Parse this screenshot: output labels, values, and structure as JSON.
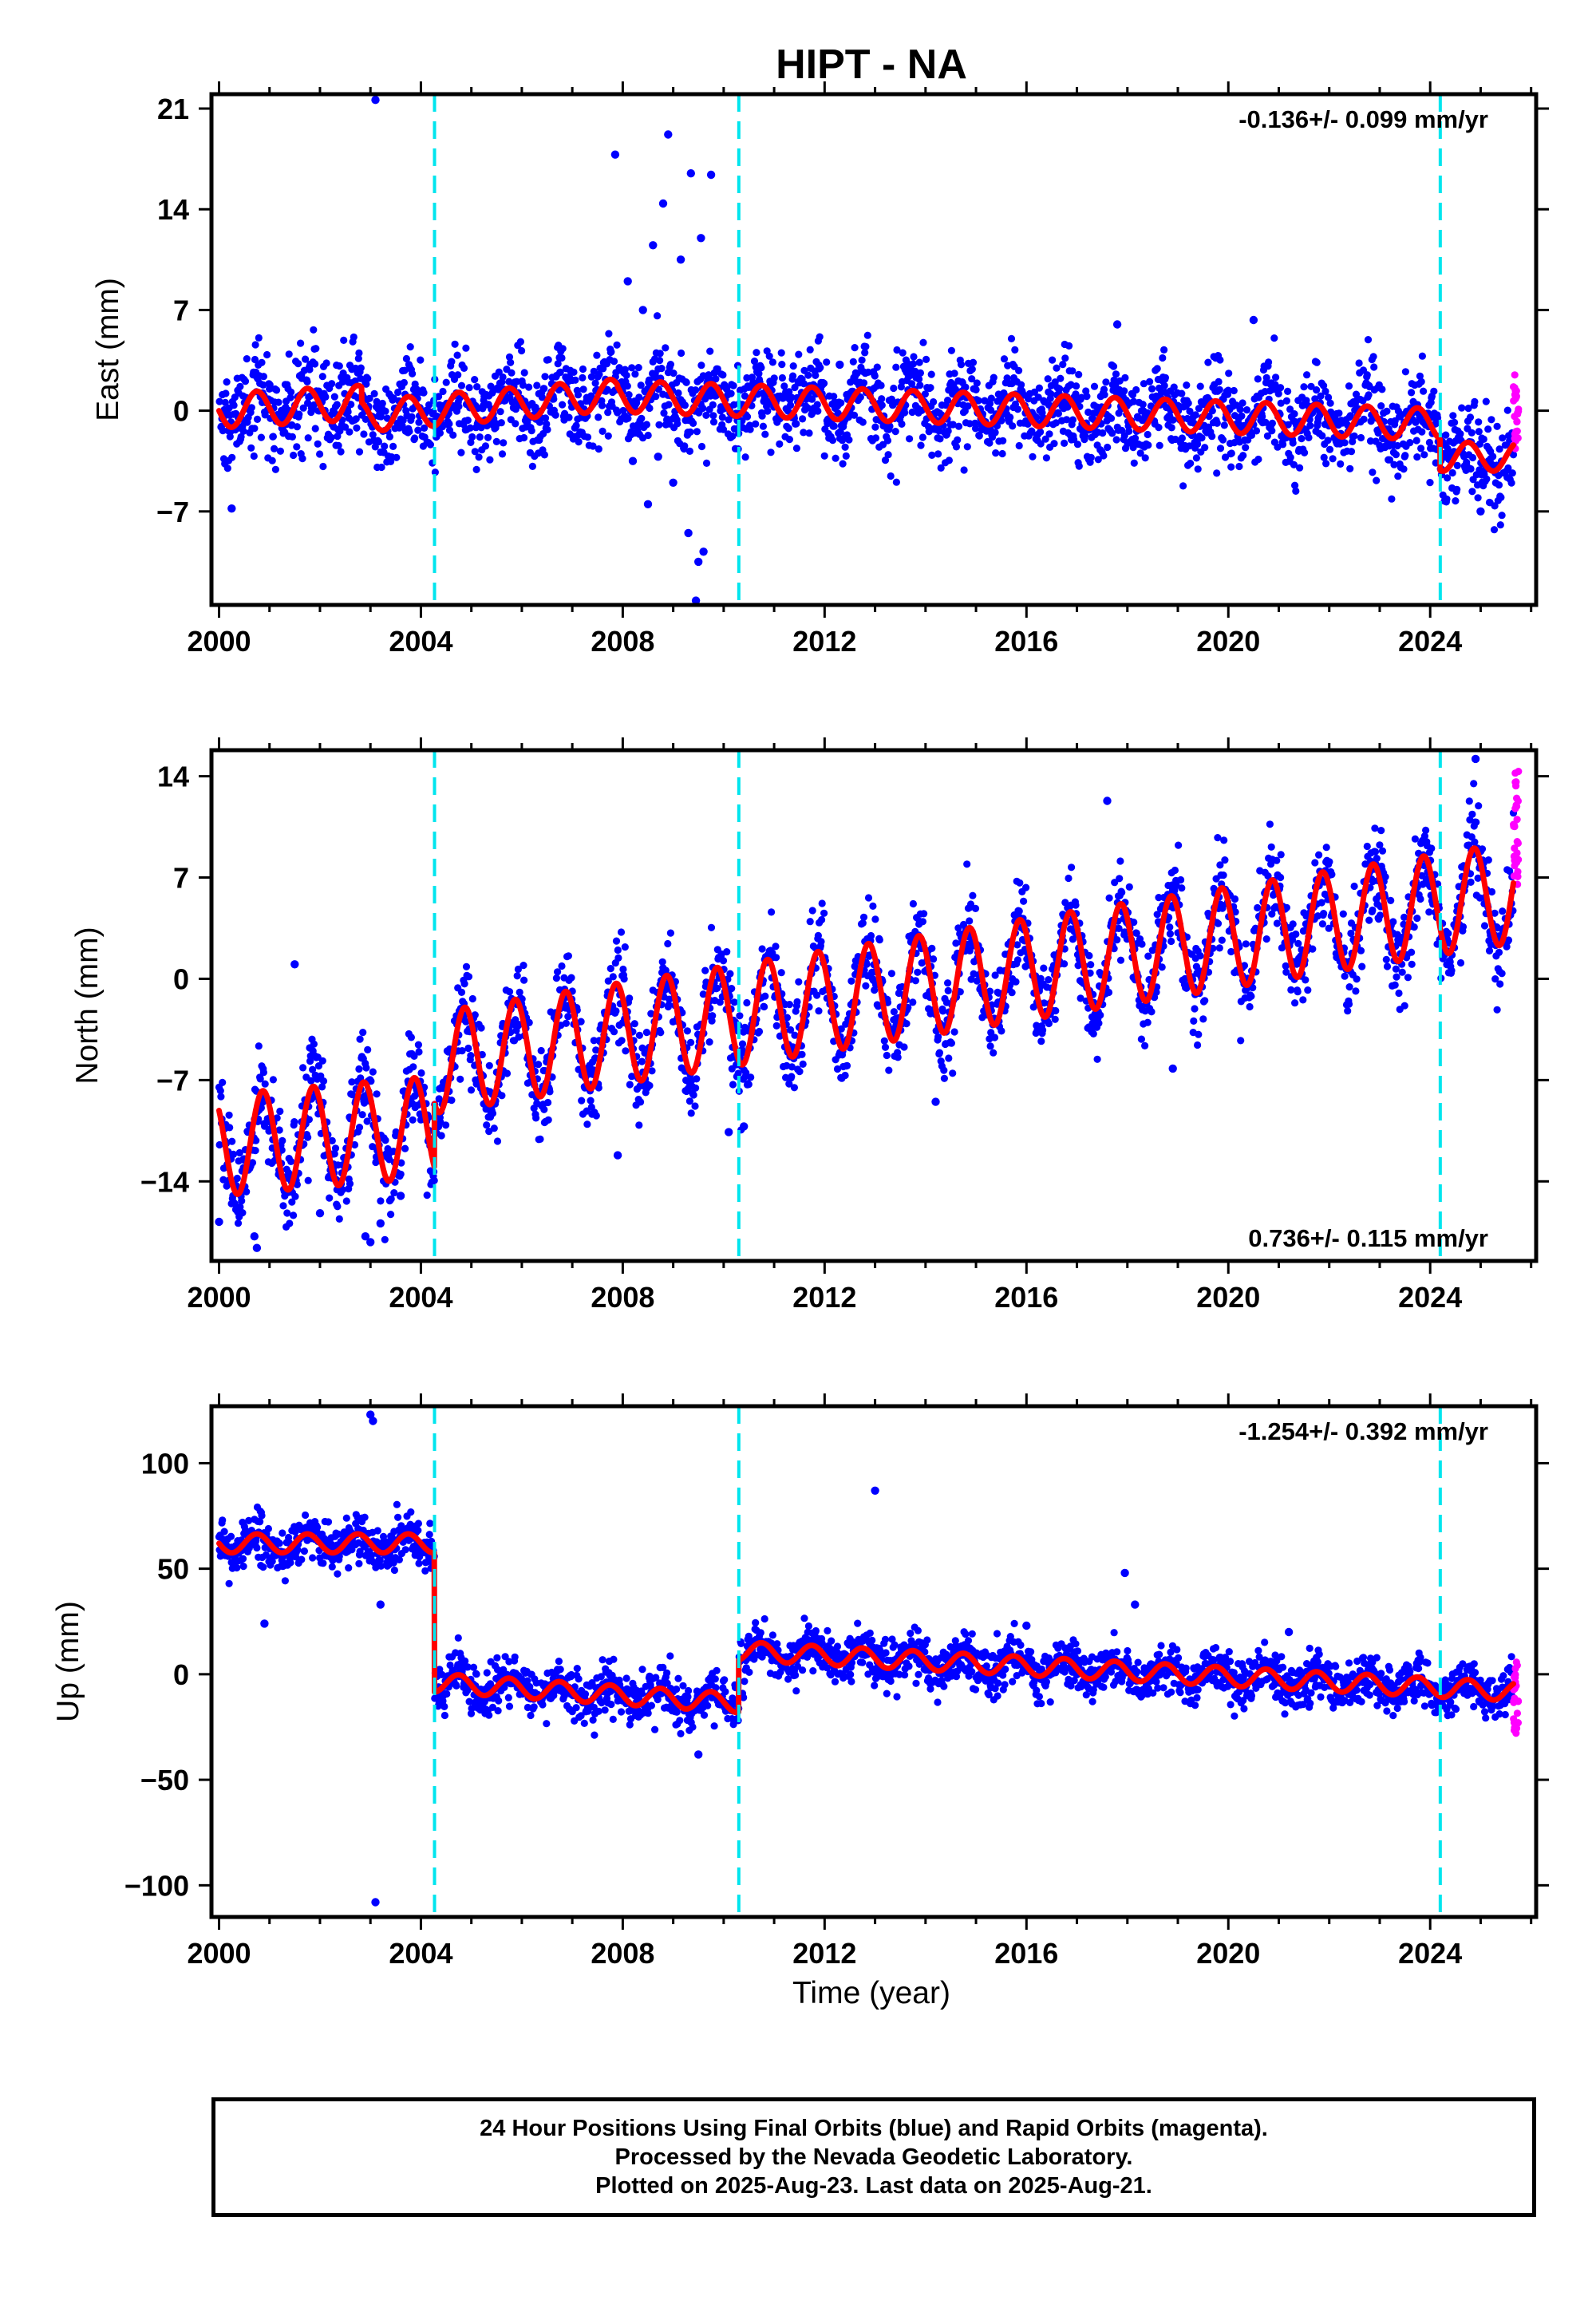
{
  "figure": {
    "title": "HIPT - NA",
    "xlabel": "Time (year)",
    "colors": {
      "final_orbits": "#0000ff",
      "rapid_orbits": "#ff00ff",
      "model": "#ff0000",
      "events": "#00e5ee",
      "frame": "#000000"
    },
    "footer": [
      "24 Hour Positions Using Final Orbits (blue) and Rapid Orbits (magenta).",
      "Processed by the Nevada Geodetic Laboratory.",
      "Plotted on 2025-Aug-23. Last data on 2025-Aug-21."
    ]
  },
  "chart_data": [
    {
      "type": "scatter",
      "component": "East",
      "ylabel": "East (mm)",
      "xlim": [
        1999.85,
        2026.1
      ],
      "ylim": [
        -13.5,
        22
      ],
      "xticks": [
        2000,
        2004,
        2008,
        2012,
        2016,
        2020,
        2024
      ],
      "xticklabels": [
        "2000",
        "2004",
        "2008",
        "2012",
        "2016",
        "2020",
        "2024"
      ],
      "yticks": [
        21,
        14,
        7,
        0,
        -7
      ],
      "yticklabels": [
        "21",
        "14",
        "7",
        "0",
        "−7"
      ],
      "rate_text": "-0.136+/- 0.099 mm/yr",
      "rate_position": "top-right",
      "events": [
        2004.27,
        2010.3,
        2024.2
      ],
      "model": {
        "breaks": [],
        "segments": [
          {
            "start": 2000.0,
            "end": 2002.83,
            "offset": 0.0,
            "slope": 0.2,
            "amplitude": 1.2
          },
          {
            "start": 2002.83,
            "end": 2007.9,
            "offset": -0.4,
            "slope": 0.3,
            "amplitude": 1.1
          },
          {
            "start": 2007.9,
            "end": 2024.2,
            "offset": 1.0,
            "slope": -0.12,
            "amplitude": 1.1
          },
          {
            "start": 2024.2,
            "end": 2025.65,
            "offset": -3.2,
            "slope": 0.0,
            "amplitude": 1.0
          }
        ],
        "phase": 0.5,
        "end": 2025.65
      },
      "scatter_spread": 1.6,
      "outliers": [
        [
          2003.1,
          21.6
        ],
        [
          2000.25,
          -6.8
        ],
        [
          2007.85,
          17.8
        ],
        [
          2008.1,
          9.0
        ],
        [
          2008.4,
          7.0
        ],
        [
          2008.6,
          11.5
        ],
        [
          2008.8,
          14.4
        ],
        [
          2008.9,
          19.2
        ],
        [
          2009.15,
          10.5
        ],
        [
          2009.35,
          16.5
        ],
        [
          2009.55,
          12.0
        ],
        [
          2009.75,
          16.4
        ],
        [
          2008.2,
          -3.5
        ],
        [
          2008.5,
          -6.5
        ],
        [
          2009.0,
          -5.0
        ],
        [
          2009.3,
          -8.5
        ],
        [
          2009.5,
          -10.5
        ],
        [
          2009.6,
          -9.8
        ],
        [
          2009.45,
          -13.2
        ],
        [
          2008.7,
          -3.2
        ],
        [
          2012.3,
          3.2
        ],
        [
          2017.8,
          6.0
        ],
        [
          2020.5,
          6.3
        ],
        [
          2025.0,
          -7.0
        ]
      ],
      "rapid": {
        "start": 2025.65,
        "end": 2025.75,
        "ymin": -3.0,
        "ymax": 2.7
      }
    },
    {
      "type": "scatter",
      "component": "North",
      "ylabel": "North (mm)",
      "xlim": [
        1999.85,
        2026.1
      ],
      "ylim": [
        -19.5,
        15.8
      ],
      "xticks": [
        2000,
        2004,
        2008,
        2012,
        2016,
        2020,
        2024
      ],
      "xticklabels": [
        "2000",
        "2004",
        "2008",
        "2012",
        "2016",
        "2020",
        "2024"
      ],
      "yticks": [
        14,
        7,
        0,
        -7,
        -14
      ],
      "yticklabels": [
        "14",
        "7",
        "0",
        "−7",
        "−14"
      ],
      "rate_text": "0.736+/- 0.115 mm/yr",
      "rate_position": "bottom-right",
      "events": [
        2004.27,
        2010.3,
        2024.2
      ],
      "model": {
        "breaks": [],
        "segments": [
          {
            "start": 2000.0,
            "end": 2004.27,
            "offset": -11.5,
            "slope": 0.3,
            "amplitude": 3.5
          },
          {
            "start": 2004.27,
            "end": 2025.65,
            "offset": -5.8,
            "slope": 0.55,
            "amplitude": 3.5
          }
        ],
        "phase": 0.62,
        "end": 2025.65
      },
      "scatter_spread": 1.6,
      "outliers": [
        [
          2000.0,
          -16.8
        ],
        [
          2000.7,
          -17.8
        ],
        [
          2000.75,
          -18.6
        ],
        [
          2001.5,
          1.0
        ],
        [
          2002.0,
          -16.2
        ],
        [
          2002.9,
          -17.8
        ],
        [
          2003.0,
          -18.2
        ],
        [
          2003.2,
          -16.9
        ],
        [
          2003.6,
          -15.0
        ],
        [
          2007.9,
          -12.2
        ],
        [
          2010.1,
          -10.6
        ],
        [
          2010.4,
          -10.2
        ],
        [
          2014.2,
          -8.5
        ],
        [
          2017.6,
          12.3
        ],
        [
          2018.9,
          -6.2
        ],
        [
          2024.9,
          15.2
        ]
      ],
      "rapid": {
        "start": 2025.65,
        "end": 2025.75,
        "ymin": 6.5,
        "ymax": 14.5
      }
    },
    {
      "type": "scatter",
      "component": "Up",
      "ylabel": "Up (mm)",
      "xlim": [
        1999.85,
        2026.1
      ],
      "ylim": [
        -115,
        127
      ],
      "xticks": [
        2000,
        2004,
        2008,
        2012,
        2016,
        2020,
        2024
      ],
      "xticklabels": [
        "2000",
        "2004",
        "2008",
        "2012",
        "2016",
        "2020",
        "2024"
      ],
      "yticks": [
        100,
        50,
        0,
        -50,
        -100
      ],
      "yticklabels": [
        "100",
        "50",
        "0",
        "−50",
        "−100"
      ],
      "rate_text": "-1.254+/- 0.392 mm/yr",
      "rate_position": "top-right",
      "events": [
        2004.27,
        2010.3,
        2024.2
      ],
      "model": {
        "breaks": [
          2004.27,
          2010.3
        ],
        "segments": [
          {
            "start": 2000.0,
            "end": 2004.27,
            "offset": 62.0,
            "slope": 0.0,
            "amplitude": 4.5
          },
          {
            "start": 2004.27,
            "end": 2010.3,
            "offset": -4.0,
            "slope": -1.6,
            "amplitude": 4.5
          },
          {
            "start": 2010.3,
            "end": 2025.65,
            "offset": 11.0,
            "slope": -1.25,
            "amplitude": 4.5
          }
        ],
        "phase": 0.5,
        "end": 2025.65
      },
      "scatter_spread": 5.5,
      "outliers": [
        [
          2003.0,
          123.0
        ],
        [
          2003.05,
          120.0
        ],
        [
          2003.1,
          -108.0
        ],
        [
          2000.9,
          24.0
        ],
        [
          2003.2,
          33.0
        ],
        [
          2009.5,
          -38.0
        ],
        [
          2013.0,
          87.0
        ],
        [
          2017.95,
          48.0
        ],
        [
          2018.15,
          33.0
        ],
        [
          2016.0,
          23.0
        ],
        [
          2021.2,
          20.0
        ]
      ],
      "rapid": {
        "start": 2025.65,
        "end": 2025.75,
        "ymin": -28.0,
        "ymax": 7.0
      }
    }
  ]
}
